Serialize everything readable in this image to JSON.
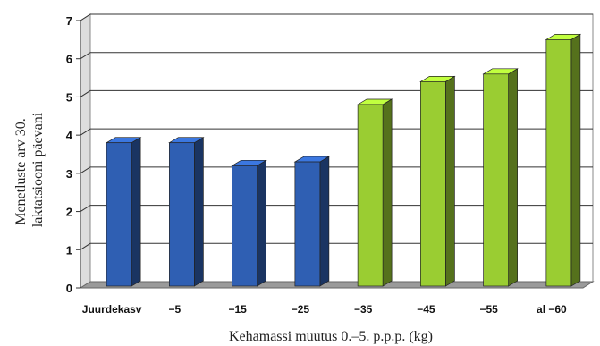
{
  "chart_data": {
    "type": "bar",
    "categories": [
      "Juurdekasv",
      "−5",
      "−15",
      "−25",
      "−35",
      "−45",
      "−55",
      "al −60"
    ],
    "values": [
      3.8,
      3.8,
      3.2,
      3.3,
      4.8,
      5.4,
      5.6,
      6.5
    ],
    "bar_colors": [
      "#2f5fb3",
      "#2f5fb3",
      "#2f5fb3",
      "#2f5fb3",
      "#9acd32",
      "#9acd32",
      "#9acd32",
      "#9acd32"
    ],
    "ylim": [
      0,
      7
    ],
    "yticks": [
      "0",
      "1",
      "2",
      "3",
      "4",
      "5",
      "6",
      "7"
    ],
    "xlabel": "Kehamassi muutus 0.–5. p.p.p. (kg)",
    "ylabel_lines": [
      "Menetluste arv 30.",
      "laktatsiooni päevani"
    ],
    "grid": true,
    "legend": "none",
    "style": "3d-bars"
  }
}
